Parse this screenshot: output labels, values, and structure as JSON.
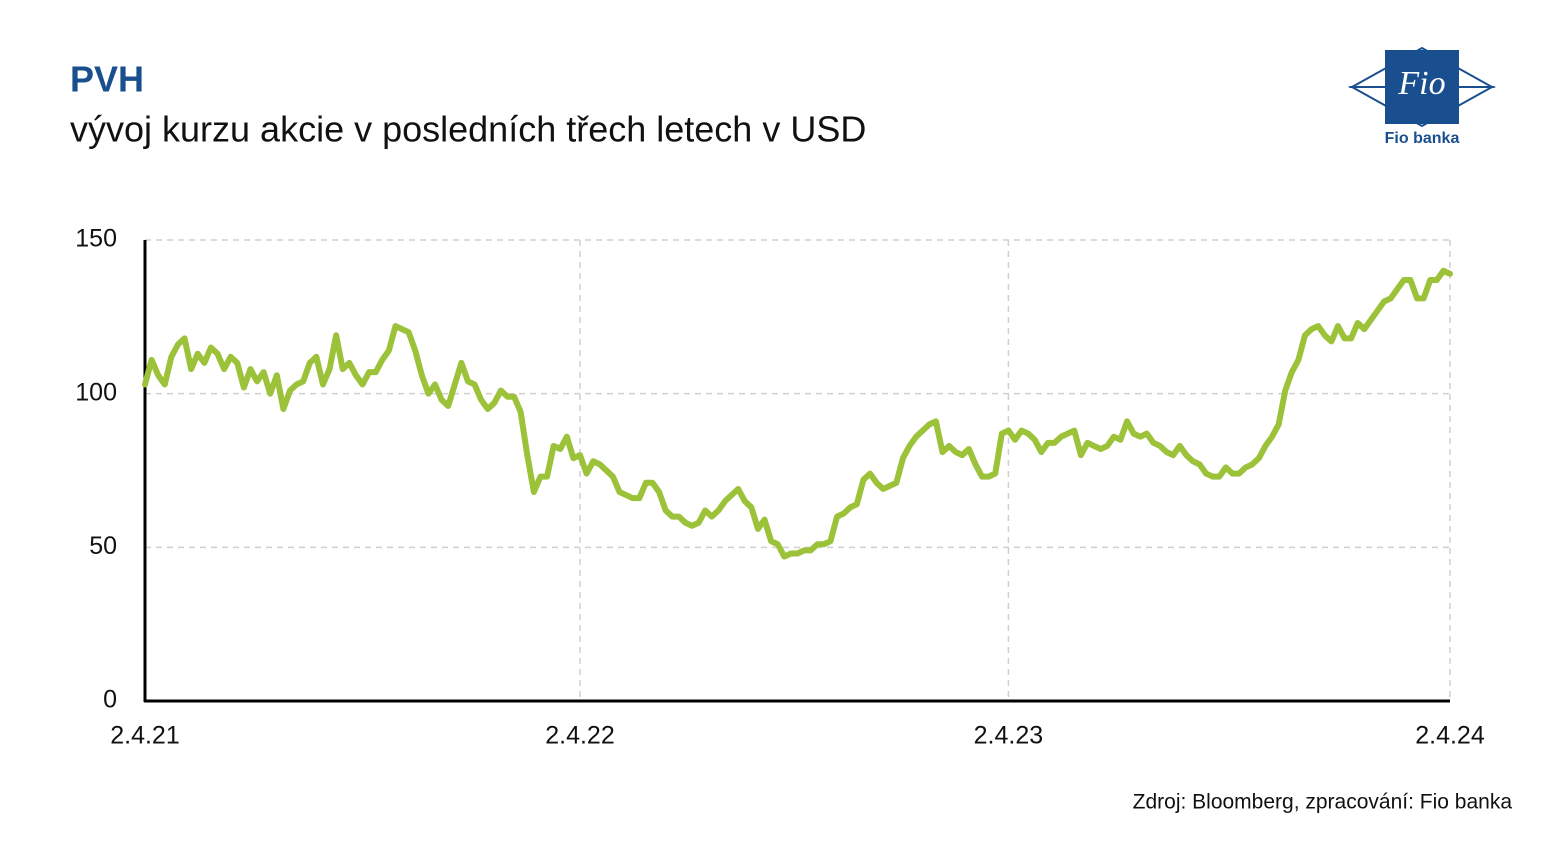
{
  "chart_data": {
    "type": "line",
    "title": "PVH",
    "subtitle": "vývoj kurzu akcie v posledních třech letech v USD",
    "source": "Zdroj: Bloomberg, zpracování: Fio banka",
    "logo": {
      "mark": "Fio",
      "name": "Fio banka"
    },
    "categories": [
      "2.4.21",
      null,
      null,
      null,
      null,
      null,
      null,
      null,
      null,
      null,
      null,
      null,
      null,
      null,
      null,
      null,
      null,
      null,
      null,
      null,
      null,
      null,
      null,
      null,
      null,
      null,
      null,
      null,
      null,
      null,
      null,
      null,
      null,
      null,
      null,
      null,
      null,
      null,
      null,
      null,
      null,
      null,
      null,
      null,
      null,
      null,
      null,
      null,
      null,
      null,
      null,
      null,
      null,
      null,
      null,
      null,
      null,
      null,
      null,
      null,
      null,
      null,
      null,
      null,
      null,
      null,
      "2.4.22",
      null,
      null,
      null,
      null,
      null,
      null,
      null,
      null,
      null,
      null,
      null,
      null,
      null,
      null,
      null,
      null,
      null,
      null,
      null,
      null,
      null,
      null,
      null,
      null,
      null,
      null,
      null,
      null,
      null,
      null,
      null,
      null,
      null,
      null,
      null,
      null,
      null,
      null,
      null,
      null,
      null,
      null,
      null,
      null,
      null,
      null,
      null,
      null,
      null,
      null,
      null,
      null,
      null,
      null,
      null,
      null,
      null,
      null,
      null,
      null,
      null,
      null,
      null,
      null,
      "2.4.23",
      null,
      null,
      null,
      null,
      null,
      null,
      null,
      null,
      null,
      null,
      null,
      null,
      null,
      null,
      null,
      null,
      null,
      null,
      null,
      null,
      null,
      null,
      null,
      null,
      null,
      null,
      null,
      null,
      null,
      null,
      null,
      null,
      null,
      null,
      null,
      null,
      null,
      null,
      null,
      null,
      null,
      null,
      null,
      null,
      null,
      null,
      null,
      null,
      null,
      null,
      null,
      null,
      null,
      null,
      null,
      null,
      null,
      null,
      null,
      null,
      null,
      null,
      null,
      null,
      null,
      null,
      "2.4.24"
    ],
    "series": [
      {
        "name": "PVH",
        "color": "#9cc23a",
        "values": [
          103,
          111,
          106,
          103,
          112,
          116,
          118,
          108,
          113,
          110,
          115,
          113,
          108,
          112,
          110,
          102,
          108,
          104,
          107,
          100,
          106,
          95,
          101,
          103,
          104,
          110,
          112,
          103,
          108,
          119,
          108,
          110,
          106,
          103,
          107,
          107,
          111,
          114,
          122,
          121,
          120,
          114,
          106,
          100,
          103,
          98,
          96,
          103,
          110,
          104,
          103,
          98,
          95,
          97,
          101,
          99,
          99,
          94,
          80,
          68,
          73,
          73,
          83,
          82,
          86,
          79,
          80,
          74,
          78,
          77,
          75,
          73,
          68,
          67,
          66,
          66,
          71,
          71,
          68,
          62,
          60,
          60,
          58,
          57,
          58,
          62,
          60,
          62,
          65,
          67,
          69,
          65,
          63,
          56,
          59,
          52,
          51,
          47,
          48,
          48,
          49,
          49,
          51,
          51,
          52,
          60,
          61,
          63,
          64,
          72,
          74,
          71,
          69,
          70,
          71,
          79,
          83,
          86,
          88,
          90,
          91,
          81,
          83,
          81,
          80,
          82,
          77,
          73,
          73,
          74,
          87,
          88,
          85,
          88,
          87,
          85,
          81,
          84,
          84,
          86,
          87,
          88,
          80,
          84,
          83,
          82,
          83,
          86,
          85,
          91,
          87,
          86,
          87,
          84,
          83,
          81,
          80,
          83,
          80,
          78,
          77,
          74,
          73,
          73,
          76,
          74,
          74,
          76,
          77,
          79,
          83,
          86,
          90,
          101,
          107,
          111,
          119,
          121,
          122,
          119,
          117,
          122,
          118,
          118,
          123,
          121,
          124,
          127,
          130,
          131,
          134,
          137,
          137,
          131,
          131,
          137,
          137,
          140,
          139
        ]
      }
    ],
    "ylim": [
      0,
      150
    ],
    "yticks": [
      0,
      50,
      100,
      150
    ],
    "grid": true
  }
}
